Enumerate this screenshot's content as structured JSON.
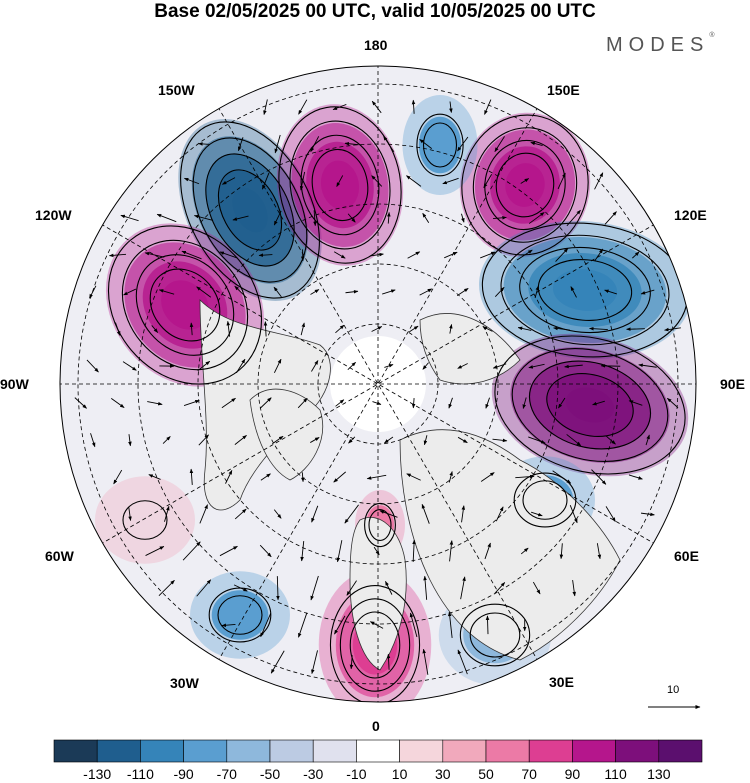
{
  "header": {
    "title": "Base 02/05/2025 00 UTC, valid 10/05/2025 00 UTC",
    "brand": "MODES",
    "brand_mark": "®"
  },
  "longitude_labels": [
    "180",
    "150E",
    "120E",
    "90E",
    "60E",
    "30E",
    "0",
    "30W",
    "60W",
    "90W",
    "120W",
    "150W"
  ],
  "reference_vector_label": "10",
  "colorbar": {
    "ticks": [
      "-130",
      "-110",
      "-90",
      "-70",
      "-50",
      "-30",
      "-10",
      "10",
      "30",
      "50",
      "70",
      "90",
      "110",
      "130"
    ],
    "colors": [
      "#1b3a57",
      "#1f5e8e",
      "#3584b9",
      "#5a9ed0",
      "#8eb8dc",
      "#bccbe3",
      "#e0e1ee",
      "#ffffff",
      "#f5d6dc",
      "#f1a9bc",
      "#ec7aa6",
      "#dd3e92",
      "#b5168c",
      "#7d0f7b",
      "#5b0f6e"
    ]
  },
  "field": {
    "anomalies": [
      {
        "name": "trough-150W-60N",
        "color": "#1f5e8e",
        "levels": 5
      },
      {
        "name": "ridge-170W-60N",
        "color": "#b5168c",
        "levels": 4
      },
      {
        "name": "ridge-140E-55N",
        "color": "#b5168c",
        "levels": 4
      },
      {
        "name": "ridge-120W-45N",
        "color": "#b5168c",
        "levels": 4
      },
      {
        "name": "trough-110E-55N",
        "color": "#3584b9",
        "levels": 4
      },
      {
        "name": "ridge-90E-45N",
        "color": "#7d0f7b",
        "levels": 5
      },
      {
        "name": "trough-175E-60N",
        "color": "#5a9ed0",
        "levels": 2
      },
      {
        "name": "trough-60E-45N",
        "color": "#5a9ed0",
        "levels": 2
      },
      {
        "name": "ridge-5W-45N",
        "color": "#dd3e92",
        "levels": 3
      },
      {
        "name": "ridge-Scandinavia",
        "color": "#ec7aa6",
        "levels": 2
      },
      {
        "name": "trough-35W-40N",
        "color": "#5a9ed0",
        "levels": 2
      },
      {
        "name": "trough-30E-35N",
        "color": "#8eb8dc",
        "levels": 2
      },
      {
        "name": "ridge-60W-35N",
        "color": "#f1a9bc",
        "levels": 1
      }
    ]
  }
}
